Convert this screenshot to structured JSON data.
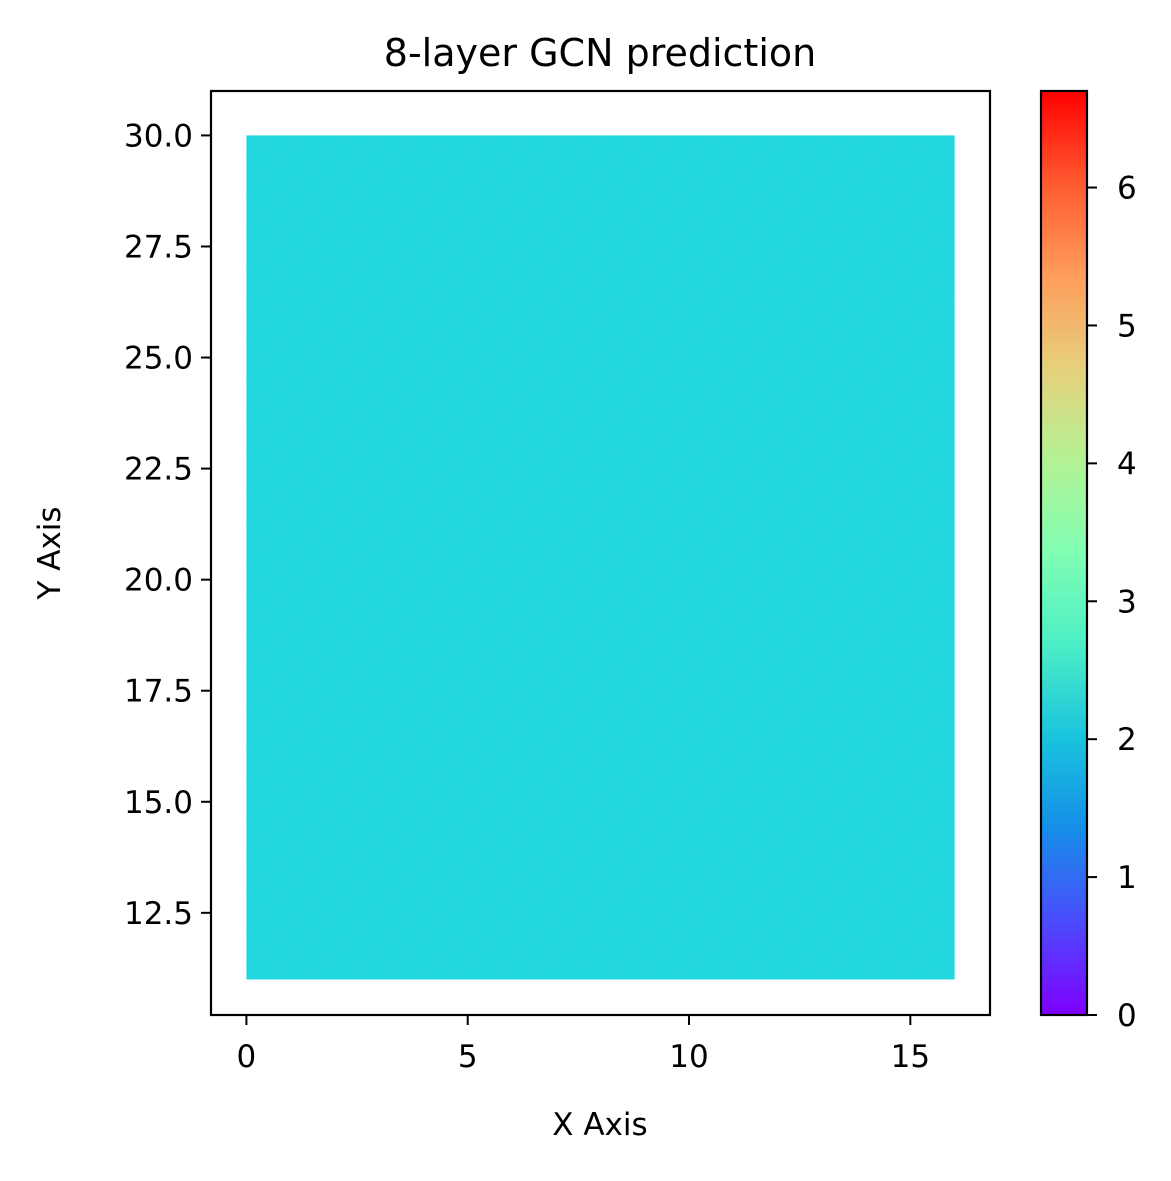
{
  "chart_data": {
    "type": "heatmap",
    "title": "8-layer GCN prediction",
    "xlabel": "X Axis",
    "ylabel": "Y Axis",
    "xlim": [
      -0.8,
      16.8
    ],
    "ylim": [
      10.2,
      31.0
    ],
    "x_ticks": [
      0,
      5,
      10,
      15
    ],
    "y_ticks": [
      12.5,
      15.0,
      17.5,
      20.0,
      22.5,
      25.0,
      27.5,
      30.0
    ],
    "x_tick_labels": [
      "0",
      "5",
      "10",
      "15"
    ],
    "y_tick_labels": [
      "12.5",
      "15.0",
      "17.5",
      "20.0",
      "22.5",
      "25.0",
      "27.5",
      "30.0"
    ],
    "field": {
      "x_range": [
        0,
        16
      ],
      "y_range": [
        11,
        30
      ],
      "value": 2.2,
      "color": "#22d6dd",
      "hatch_color": "#2ddde3"
    },
    "colorbar": {
      "colormap": "rainbow",
      "vmin": 0,
      "vmax": 6.7,
      "ticks": [
        0,
        1,
        2,
        3,
        4,
        5,
        6
      ],
      "tick_labels": [
        "0",
        "1",
        "2",
        "3",
        "4",
        "5",
        "6"
      ],
      "stops": [
        "#7f00ff",
        "#4c4bfd",
        "#168de8",
        "#19c3dd",
        "#4ceec6",
        "#80feb3",
        "#b3f294",
        "#e6d07b",
        "#ff9d5c",
        "#ff5a30",
        "#ff0000"
      ]
    },
    "grid": false,
    "legend": "none"
  }
}
